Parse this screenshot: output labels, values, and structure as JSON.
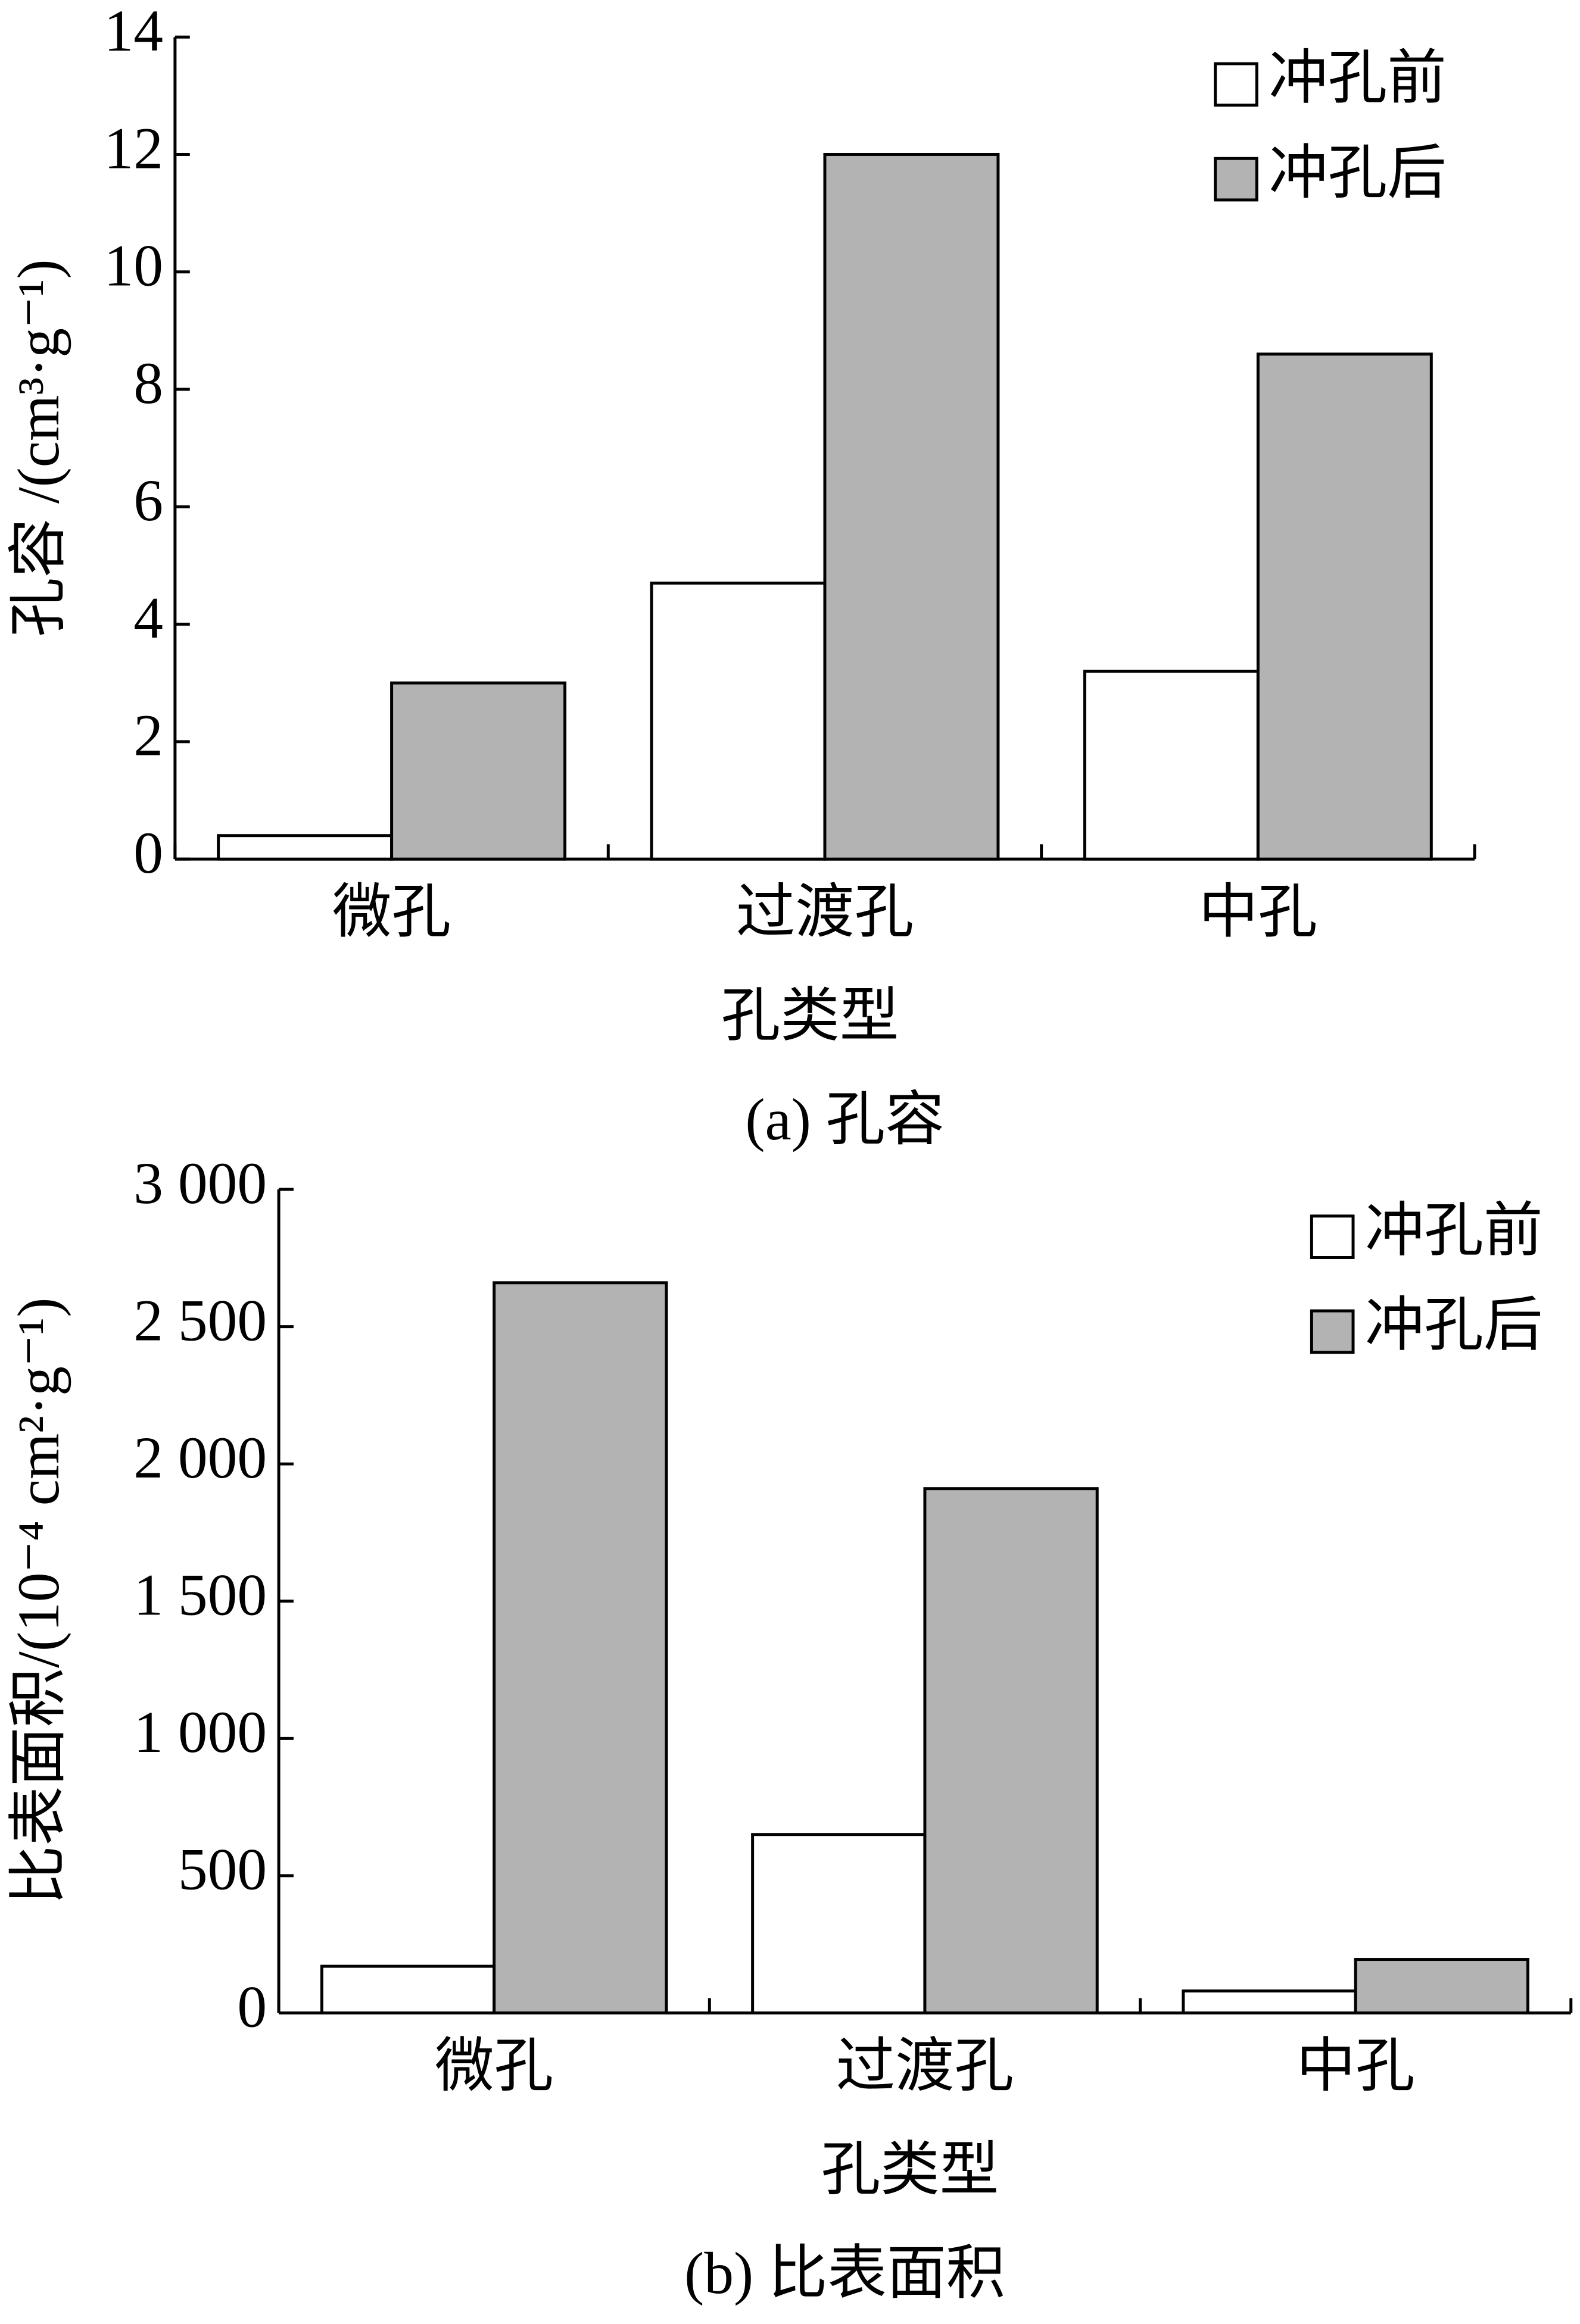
{
  "chart_data": [
    {
      "type": "bar",
      "caption": "(a) 孔容",
      "y_label": "孔容 /(cm³·g⁻¹)",
      "x_label": "孔类型",
      "categories": [
        "微孔",
        "过渡孔",
        "中孔"
      ],
      "series": [
        {
          "name": "冲孔前",
          "color": "#ffffff",
          "values": [
            0.4,
            4.7,
            3.2
          ]
        },
        {
          "name": "冲孔后",
          "color": "#b3b3b3",
          "values": [
            3.0,
            12.0,
            8.6
          ]
        }
      ],
      "ylim": [
        0,
        14
      ],
      "yticks": [
        0,
        2,
        4,
        6,
        8,
        10,
        12,
        14
      ],
      "legend": "upper right",
      "grid": false
    },
    {
      "type": "bar",
      "caption": "(b) 比表面积",
      "y_label": "比表面积/(10⁻⁴ cm²·g⁻¹)",
      "x_label": "孔类型",
      "categories": [
        "微孔",
        "过渡孔",
        "中孔"
      ],
      "series": [
        {
          "name": "冲孔前",
          "color": "#ffffff",
          "values": [
            170,
            650,
            80
          ]
        },
        {
          "name": "冲孔后",
          "color": "#b3b3b3",
          "values": [
            2660,
            1910,
            195
          ]
        }
      ],
      "ylim": [
        0,
        3000
      ],
      "yticks": [
        0,
        500,
        {
          "value": 1000,
          "label": "1 000"
        },
        {
          "value": 1500,
          "label": "1 500"
        },
        {
          "value": 2000,
          "label": "2 000"
        },
        {
          "value": 2500,
          "label": "2 500"
        },
        {
          "value": 3000,
          "label": "3 000"
        }
      ],
      "legend": "upper right",
      "grid": false
    }
  ]
}
